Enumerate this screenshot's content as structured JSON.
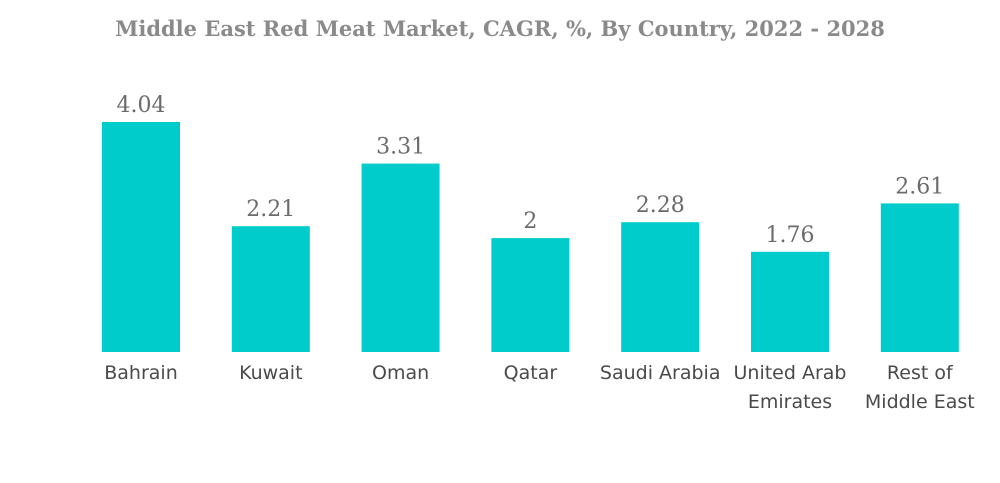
{
  "chart_data": {
    "type": "bar",
    "title": "Middle East Red Meat Market, CAGR, %, By Country, 2022 - 2028",
    "categories": [
      [
        "Bahrain"
      ],
      [
        "Kuwait"
      ],
      [
        "Oman"
      ],
      [
        "Qatar"
      ],
      [
        "Saudi Arabia"
      ],
      [
        "United Arab",
        "Emirates"
      ],
      [
        "Rest of",
        "Middle East"
      ]
    ],
    "values": [
      4.04,
      2.21,
      3.31,
      2,
      2.28,
      1.76,
      2.61
    ],
    "value_labels": [
      "4.04",
      "2.21",
      "3.31",
      "2",
      "2.28",
      "1.76",
      "2.61"
    ],
    "bar_color": "#00CCCC",
    "ylim": [
      0,
      4.04
    ],
    "grid": false,
    "legend": "none"
  }
}
